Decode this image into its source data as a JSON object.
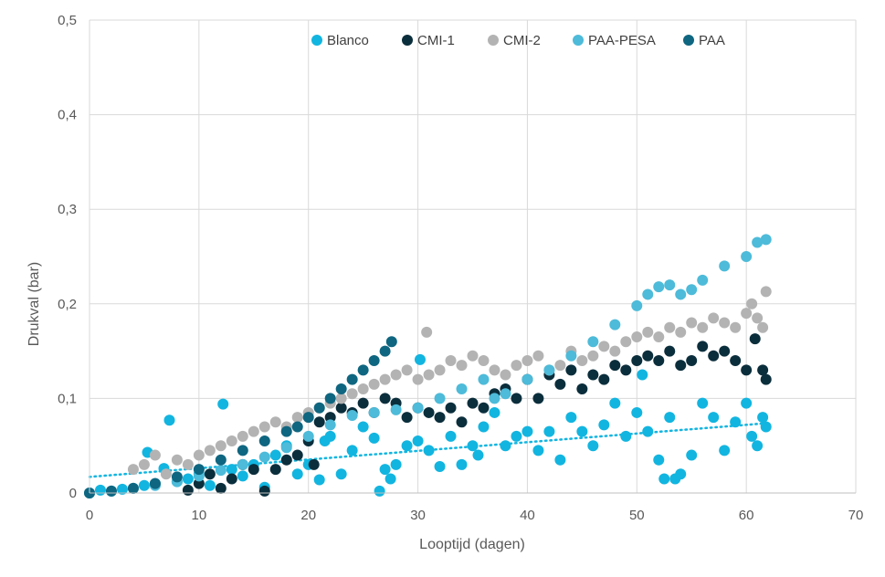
{
  "chart_data": {
    "type": "scatter",
    "title": "",
    "xlabel": "Looptijd (dagen)",
    "ylabel": "Drukval (bar)",
    "xlim": [
      0,
      70
    ],
    "ylim": [
      0,
      0.5
    ],
    "x_ticks": [
      "0",
      "10",
      "20",
      "30",
      "40",
      "50",
      "60",
      "70"
    ],
    "y_ticks": [
      "0",
      "0,1",
      "0,2",
      "0,3",
      "0,4",
      "0,5"
    ],
    "grid": "vertical and horizontal major gridlines",
    "legend_position": "top",
    "series": [
      {
        "name": "Blanco",
        "color": "#12B5E0",
        "trendline": "linear dotted",
        "x": [
          0,
          1,
          2,
          3,
          4,
          5,
          5.3,
          6,
          6.8,
          7.3,
          8,
          9,
          10,
          11,
          12.2,
          13,
          14,
          15,
          16,
          17,
          18,
          19,
          20,
          21,
          21.5,
          22,
          23,
          24,
          25,
          26,
          26.5,
          27,
          27.5,
          28,
          29,
          30,
          30.2,
          31,
          32,
          33,
          34,
          35,
          35.5,
          36,
          37,
          38,
          39,
          40,
          41,
          42,
          43,
          44,
          45,
          46,
          47,
          48,
          49,
          50,
          50.5,
          51,
          52,
          52.5,
          53,
          53.5,
          54,
          55,
          56,
          57,
          58,
          59,
          60,
          60.5,
          61,
          61.5,
          61.8
        ],
        "y": [
          0,
          0.003,
          0.002,
          0.004,
          0.005,
          0.008,
          0.043,
          0.01,
          0.026,
          0.077,
          0.012,
          0.015,
          0.02,
          0.008,
          0.094,
          0.025,
          0.018,
          0.03,
          0.006,
          0.04,
          0.05,
          0.02,
          0.03,
          0.014,
          0.055,
          0.06,
          0.02,
          0.045,
          0.07,
          0.058,
          0.002,
          0.025,
          0.015,
          0.03,
          0.05,
          0.055,
          0.141,
          0.045,
          0.028,
          0.06,
          0.03,
          0.05,
          0.04,
          0.07,
          0.085,
          0.05,
          0.06,
          0.065,
          0.045,
          0.065,
          0.035,
          0.08,
          0.065,
          0.05,
          0.072,
          0.095,
          0.06,
          0.085,
          0.125,
          0.065,
          0.035,
          0.015,
          0.08,
          0.015,
          0.02,
          0.04,
          0.095,
          0.08,
          0.045,
          0.075,
          0.095,
          0.06,
          0.05,
          0.08,
          0.07
        ]
      },
      {
        "name": "CMI-1",
        "color": "#0B2E3C",
        "x": [
          9,
          10,
          11,
          12,
          13,
          14,
          15,
          16,
          17,
          18,
          19,
          20,
          20.5,
          21,
          22,
          23,
          24,
          25,
          26,
          27,
          28,
          29,
          30,
          31,
          32,
          33,
          34,
          35,
          36,
          37,
          38,
          39,
          40,
          41,
          42,
          43,
          44,
          45,
          46,
          47,
          48,
          49,
          50,
          51,
          52,
          53,
          54,
          55,
          56,
          57,
          58,
          59,
          60,
          60.8,
          61.5,
          61.8
        ],
        "y": [
          0.003,
          0.01,
          0.02,
          0.005,
          0.015,
          0.03,
          0.025,
          0.002,
          0.025,
          0.035,
          0.04,
          0.055,
          0.03,
          0.075,
          0.08,
          0.09,
          0.085,
          0.095,
          0.085,
          0.1,
          0.095,
          0.08,
          0.09,
          0.085,
          0.08,
          0.09,
          0.075,
          0.095,
          0.09,
          0.105,
          0.11,
          0.1,
          0.12,
          0.1,
          0.125,
          0.115,
          0.13,
          0.11,
          0.125,
          0.12,
          0.135,
          0.13,
          0.14,
          0.145,
          0.14,
          0.15,
          0.135,
          0.14,
          0.155,
          0.145,
          0.15,
          0.14,
          0.13,
          0.163,
          0.13,
          0.12
        ]
      },
      {
        "name": "CMI-2",
        "color": "#B3B3B3",
        "x": [
          4,
          5,
          6,
          7,
          8,
          9,
          10,
          11,
          12,
          13,
          14,
          15,
          16,
          17,
          18,
          19,
          20,
          21,
          22,
          23,
          24,
          25,
          26,
          27,
          28,
          29,
          30,
          30.8,
          31,
          32,
          33,
          34,
          35,
          36,
          37,
          38,
          39,
          40,
          41,
          42,
          43,
          44,
          45,
          46,
          47,
          48,
          49,
          50,
          51,
          52,
          53,
          54,
          55,
          56,
          57,
          58,
          59,
          60,
          60.5,
          61,
          61.5,
          61.8
        ],
        "y": [
          0.025,
          0.03,
          0.04,
          0.02,
          0.035,
          0.03,
          0.04,
          0.045,
          0.05,
          0.055,
          0.06,
          0.065,
          0.07,
          0.075,
          0.07,
          0.08,
          0.085,
          0.09,
          0.095,
          0.1,
          0.105,
          0.11,
          0.115,
          0.12,
          0.125,
          0.13,
          0.12,
          0.17,
          0.125,
          0.13,
          0.14,
          0.135,
          0.145,
          0.14,
          0.13,
          0.125,
          0.135,
          0.14,
          0.145,
          0.13,
          0.135,
          0.15,
          0.14,
          0.145,
          0.155,
          0.15,
          0.16,
          0.165,
          0.17,
          0.165,
          0.175,
          0.17,
          0.18,
          0.175,
          0.185,
          0.18,
          0.175,
          0.19,
          0.2,
          0.185,
          0.175,
          0.213
        ]
      },
      {
        "name": "PAA-PESA",
        "color": "#4DBBD9",
        "x": [
          0,
          2,
          4,
          6,
          8,
          10,
          12,
          14,
          16,
          18,
          20,
          22,
          24,
          26,
          28,
          30,
          32,
          34,
          36,
          37,
          38,
          40,
          42,
          44,
          46,
          48,
          50,
          51,
          52,
          53,
          54,
          55,
          56,
          58,
          60,
          61,
          61.8
        ],
        "y": [
          0,
          0.002,
          0.005,
          0.008,
          0.012,
          0.018,
          0.024,
          0.03,
          0.038,
          0.048,
          0.06,
          0.072,
          0.082,
          0.085,
          0.088,
          0.09,
          0.1,
          0.11,
          0.12,
          0.1,
          0.105,
          0.12,
          0.13,
          0.145,
          0.16,
          0.178,
          0.198,
          0.21,
          0.218,
          0.22,
          0.21,
          0.215,
          0.225,
          0.24,
          0.25,
          0.265,
          0.268
        ]
      },
      {
        "name": "PAA",
        "color": "#0F6680",
        "x": [
          0,
          2,
          4,
          6,
          8,
          10,
          12,
          14,
          16,
          18,
          19,
          20,
          21,
          22,
          23,
          24,
          25,
          26,
          27,
          27.6
        ],
        "y": [
          0,
          0.002,
          0.005,
          0.01,
          0.017,
          0.025,
          0.035,
          0.045,
          0.055,
          0.065,
          0.07,
          0.08,
          0.09,
          0.1,
          0.11,
          0.12,
          0.13,
          0.14,
          0.15,
          0.16
        ]
      }
    ]
  }
}
